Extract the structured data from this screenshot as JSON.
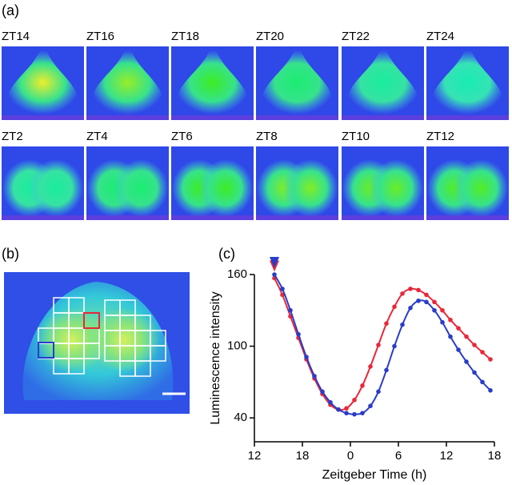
{
  "panel_a": {
    "label": "(a)",
    "images": [
      "ZT14",
      "ZT16",
      "ZT18",
      "ZT20",
      "ZT22",
      "ZT24",
      "ZT2",
      "ZT4",
      "ZT6",
      "ZT8",
      "ZT10",
      "ZT12"
    ]
  },
  "panel_b": {
    "label": "(b)"
  },
  "chart_data": {
    "type": "line",
    "label": "(c)",
    "xlabel": "Zeitgeber Time (h)",
    "ylabel": "Luminescence intensity",
    "x": [
      14.5,
      15.5,
      16.5,
      17.5,
      18.5,
      19.5,
      20.5,
      21.5,
      22.5,
      23.5,
      24.5,
      25.5,
      26.5,
      27.5,
      28.5,
      29.5,
      30.5,
      31.5,
      32.5,
      33.5,
      34.5,
      35.5,
      36.5,
      37.5,
      38.5,
      39.5,
      40.5,
      41.5
    ],
    "series": [
      {
        "color": "#e8283a",
        "values": [
          157,
          143,
          125,
          107,
          89,
          73,
          60,
          51,
          47,
          48,
          55,
          67,
          83,
          101,
          119,
          133,
          144,
          148,
          147,
          143,
          137,
          130,
          122,
          115,
          108,
          101,
          95,
          89
        ]
      },
      {
        "color": "#2a3cc8",
        "values": [
          160,
          148,
          130,
          110,
          91,
          75,
          62,
          53,
          47,
          44,
          43,
          44,
          50,
          62,
          80,
          100,
          118,
          132,
          138,
          137,
          130,
          120,
          108,
          97,
          87,
          78,
          70,
          63
        ]
      }
    ],
    "xlim": [
      12,
      42
    ],
    "ylim": [
      20,
      160
    ],
    "xticks": [
      12,
      18,
      {
        "value": 24,
        "label": "0"
      },
      {
        "value": 30,
        "label": "6"
      },
      {
        "value": 36,
        "label": "12"
      },
      {
        "value": 42,
        "label": "18"
      }
    ],
    "yticks": [
      40,
      100,
      160
    ]
  }
}
